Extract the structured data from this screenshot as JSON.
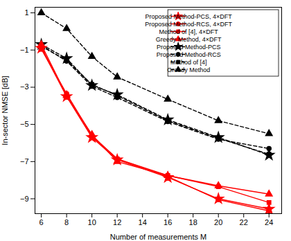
{
  "chart_data": {
    "type": "line",
    "x": [
      6,
      8,
      10,
      12,
      16,
      20,
      24
    ],
    "xlabel": "Number of measurements M",
    "ylabel": "In-sector NMSE [dB]",
    "xlim": [
      5.5,
      25
    ],
    "ylim": [
      -9.8,
      1.3
    ],
    "xticks": [
      6,
      8,
      10,
      12,
      14,
      16,
      18,
      20,
      22,
      24
    ],
    "yticks": [
      1,
      -1,
      -3,
      -5,
      -7,
      -9
    ],
    "grid": false,
    "legend": "upper right",
    "series": [
      {
        "name": "Proposed Method-PCS, 4×DFT",
        "color": "#FF0000",
        "marker": "star",
        "line_style": "solid",
        "values": [
          -0.9,
          -3.5,
          -5.7,
          -6.9,
          -7.85,
          -9.0,
          -9.55
        ]
      },
      {
        "name": "Proposed Method-RCS, 4×DFT",
        "color": "#FF0000",
        "marker": "circle",
        "line_style": "solid",
        "values": [
          -0.95,
          -3.35,
          -5.6,
          -6.85,
          -7.8,
          -9.05,
          -9.65
        ]
      },
      {
        "name": "Method of [4], 4×DFT",
        "color": "#FF0000",
        "marker": "square",
        "line_style": "solid",
        "values": [
          -0.85,
          -3.45,
          -5.65,
          -6.85,
          -7.75,
          -8.35,
          -9.2
        ]
      },
      {
        "name": "Greedy Method, 4×DFT",
        "color": "#FF0000",
        "marker": "triangle",
        "line_style": "solid",
        "values": [
          -0.7,
          -3.45,
          -5.55,
          -7.0,
          -7.75,
          -8.3,
          -8.75
        ]
      },
      {
        "name": "Proposed Method-PCS",
        "color": "#000000",
        "marker": "star",
        "line_style": "dashed",
        "values": [
          -0.7,
          -1.45,
          -2.9,
          -3.4,
          -4.75,
          -5.7,
          -6.65
        ]
      },
      {
        "name": "Proposed Method-RCS",
        "color": "#000000",
        "marker": "circle",
        "line_style": "dashed",
        "values": [
          -0.75,
          -1.6,
          -2.95,
          -3.55,
          -4.85,
          -5.8,
          -6.3
        ]
      },
      {
        "name": "Method of [4]",
        "color": "#000000",
        "marker": "square",
        "line_style": "dashed",
        "values": [
          -0.8,
          -1.55,
          -2.85,
          -3.45,
          -4.8,
          -5.75,
          -6.6
        ]
      },
      {
        "name": "Greedy Method",
        "color": "#000000",
        "marker": "triangle",
        "line_style": "dashed",
        "values": [
          1.0,
          0.15,
          -1.35,
          -2.45,
          -3.65,
          -4.8,
          -5.5
        ]
      }
    ]
  }
}
